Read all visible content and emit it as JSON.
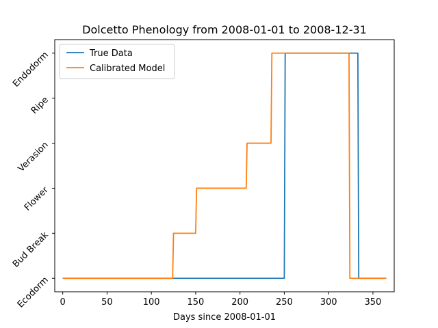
{
  "chart_data": {
    "type": "line",
    "title": "Dolcetto Phenology from 2008-01-01 to 2008-12-31",
    "xlabel": "Days since 2008-01-01",
    "ylabel": "",
    "xlim": [
      -9,
      374
    ],
    "ylim": [
      -0.3,
      5.3
    ],
    "xticks": [
      0,
      50,
      100,
      150,
      200,
      250,
      300,
      350
    ],
    "xtick_labels": [
      "0",
      "50",
      "100",
      "150",
      "200",
      "250",
      "300",
      "350"
    ],
    "yticks": [
      0,
      1,
      2,
      3,
      4,
      5
    ],
    "ytick_labels": [
      "Ecodorm",
      "Bud Break",
      "Flower",
      "Verasion",
      "Ripe",
      "Endodorm"
    ],
    "grid": false,
    "legend_position": "top-left",
    "series": [
      {
        "name": "True Data",
        "color": "#1f77b4",
        "x": [
          0,
          250,
          251,
          333,
          334,
          365
        ],
        "y": [
          0,
          0,
          5,
          5,
          0,
          0
        ]
      },
      {
        "name": "Calibrated Model",
        "color": "#ff7f0e",
        "x": [
          0,
          124,
          125,
          150,
          151,
          207,
          208,
          235,
          236,
          323,
          324,
          365
        ],
        "y": [
          0,
          0,
          1,
          1,
          2,
          2,
          3,
          3,
          5,
          5,
          0,
          0
        ]
      }
    ]
  }
}
